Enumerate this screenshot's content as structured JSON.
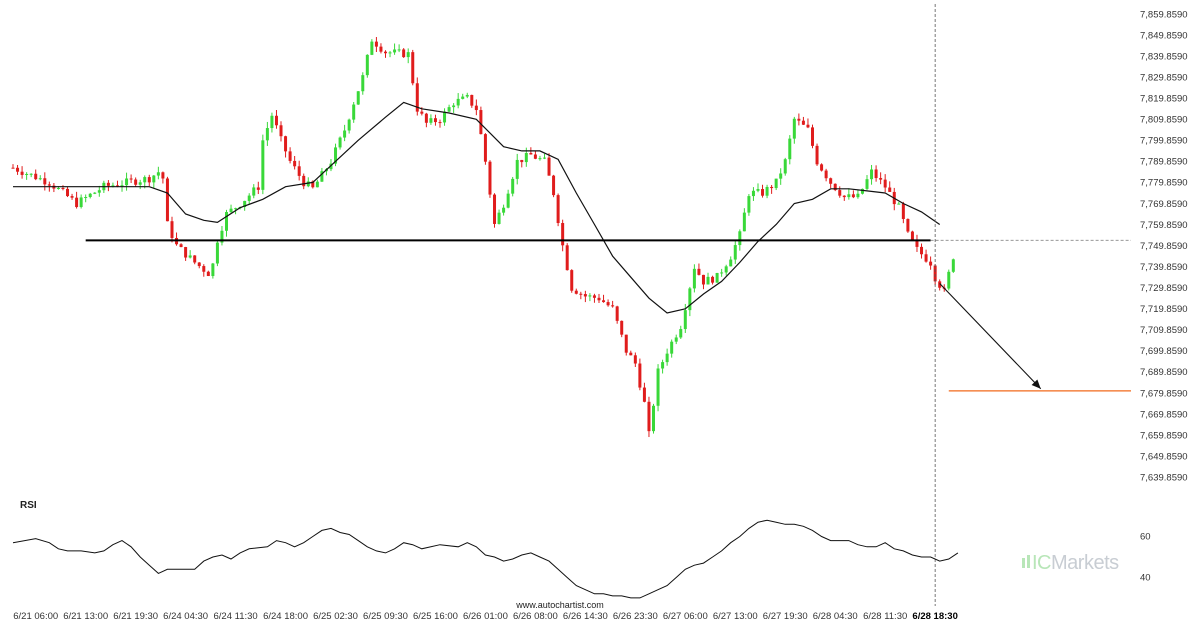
{
  "chart_data": {
    "type": "candlestick",
    "colors": {
      "up": "#39d839",
      "down": "#e01c1c",
      "ma": "#111111",
      "support": "#000000",
      "target": "#f26a1b",
      "arrow": "#111111",
      "rsi": "#111111"
    },
    "price_axis": {
      "ylim": [
        7634.859,
        7862.859
      ],
      "ticks": [
        "7,859.8590",
        "7,849.8590",
        "7,839.8590",
        "7,829.8590",
        "7,819.8590",
        "7,809.8590",
        "7,799.8590",
        "7,789.8590",
        "7,779.8590",
        "7,769.8590",
        "7,759.8590",
        "7,749.8590",
        "7,739.8590",
        "7,729.8590",
        "7,719.8590",
        "7,709.8590",
        "7,699.8590",
        "7,689.8590",
        "7,679.8590",
        "7,669.8590",
        "7,659.8590",
        "7,649.8590",
        "7,639.8590"
      ],
      "tick_values": [
        7859.859,
        7849.859,
        7839.859,
        7829.859,
        7819.859,
        7809.859,
        7799.859,
        7789.859,
        7779.859,
        7769.859,
        7759.859,
        7749.859,
        7739.859,
        7729.859,
        7719.859,
        7709.859,
        7699.859,
        7689.859,
        7679.859,
        7669.859,
        7659.859,
        7649.859,
        7639.859
      ]
    },
    "time_axis": {
      "bars": 228,
      "labels": [
        "6/21 06:00",
        "6/21 13:00",
        "6/21 19:30",
        "6/24 04:30",
        "6/24 11:30",
        "6/24 18:00",
        "6/25 02:30",
        "6/25 09:30",
        "6/25 16:00",
        "6/26 01:00",
        "6/26 08:00",
        "6/26 14:30",
        "6/26 23:30",
        "6/27 06:00",
        "6/27 13:00",
        "6/27 19:30",
        "6/28 04:30",
        "6/28 11:30",
        "6/28 18:30"
      ],
      "label_bar_index": [
        5,
        16,
        27,
        38,
        49,
        60,
        71,
        82,
        93,
        104,
        115,
        126,
        137,
        148,
        159,
        170,
        181,
        192,
        203
      ],
      "bold_label_index": 18
    },
    "price_path": [
      [
        0,
        7787
      ],
      [
        8,
        7780
      ],
      [
        14,
        7770
      ],
      [
        20,
        7778
      ],
      [
        30,
        7782
      ],
      [
        32,
        7785
      ],
      [
        33,
        7782
      ],
      [
        34,
        7760
      ],
      [
        36,
        7750
      ],
      [
        40,
        7742
      ],
      [
        43,
        7737
      ],
      [
        44,
        7741
      ],
      [
        45,
        7753
      ],
      [
        47,
        7765
      ],
      [
        50,
        7770
      ],
      [
        54,
        7778
      ],
      [
        55,
        7800
      ],
      [
        57,
        7812
      ],
      [
        59,
        7800
      ],
      [
        61,
        7790
      ],
      [
        64,
        7780
      ],
      [
        66,
        7777
      ],
      [
        70,
        7790
      ],
      [
        73,
        7805
      ],
      [
        75,
        7818
      ],
      [
        77,
        7830
      ],
      [
        79,
        7848
      ],
      [
        82,
        7842
      ],
      [
        87,
        7841
      ],
      [
        89,
        7815
      ],
      [
        91,
        7808
      ],
      [
        94,
        7810
      ],
      [
        97,
        7818
      ],
      [
        100,
        7820
      ],
      [
        102,
        7815
      ],
      [
        104,
        7790
      ],
      [
        106,
        7760
      ],
      [
        108,
        7770
      ],
      [
        111,
        7790
      ],
      [
        114,
        7793
      ],
      [
        117,
        7790
      ],
      [
        119,
        7775
      ],
      [
        121,
        7750
      ],
      [
        123,
        7730
      ],
      [
        126,
        7726
      ],
      [
        129,
        7725
      ],
      [
        132,
        7720
      ],
      [
        135,
        7700
      ],
      [
        137,
        7694
      ],
      [
        139,
        7675
      ],
      [
        140,
        7660
      ],
      [
        142,
        7690
      ],
      [
        144,
        7700
      ],
      [
        147,
        7712
      ],
      [
        150,
        7740
      ],
      [
        152,
        7733
      ],
      [
        155,
        7735
      ],
      [
        158,
        7745
      ],
      [
        160,
        7755
      ],
      [
        162,
        7775
      ],
      [
        165,
        7775
      ],
      [
        168,
        7780
      ],
      [
        170,
        7790
      ],
      [
        172,
        7810
      ],
      [
        175,
        7805
      ],
      [
        177,
        7790
      ],
      [
        180,
        7780
      ],
      [
        183,
        7773
      ],
      [
        186,
        7773
      ],
      [
        189,
        7785
      ],
      [
        192,
        7778
      ],
      [
        195,
        7768
      ],
      [
        197,
        7755
      ],
      [
        199,
        7748
      ],
      [
        202,
        7742
      ],
      [
        203,
        7735
      ],
      [
        205,
        7728
      ],
      [
        207,
        7745
      ]
    ],
    "ma_path": [
      [
        0,
        7778
      ],
      [
        10,
        7778
      ],
      [
        20,
        7778
      ],
      [
        26,
        7778
      ],
      [
        30,
        7778
      ],
      [
        34,
        7775
      ],
      [
        38,
        7765
      ],
      [
        42,
        7762
      ],
      [
        45,
        7761
      ],
      [
        50,
        7768
      ],
      [
        55,
        7772
      ],
      [
        60,
        7778
      ],
      [
        66,
        7780
      ],
      [
        70,
        7788
      ],
      [
        76,
        7800
      ],
      [
        82,
        7811
      ],
      [
        86,
        7818
      ],
      [
        90,
        7815
      ],
      [
        96,
        7813
      ],
      [
        102,
        7810
      ],
      [
        108,
        7797
      ],
      [
        112,
        7795
      ],
      [
        116,
        7795
      ],
      [
        120,
        7791
      ],
      [
        124,
        7775
      ],
      [
        128,
        7760
      ],
      [
        132,
        7745
      ],
      [
        136,
        7735
      ],
      [
        140,
        7725
      ],
      [
        144,
        7718
      ],
      [
        148,
        7720
      ],
      [
        152,
        7727
      ],
      [
        156,
        7733
      ],
      [
        160,
        7742
      ],
      [
        164,
        7752
      ],
      [
        168,
        7760
      ],
      [
        172,
        7770
      ],
      [
        176,
        7772
      ],
      [
        180,
        7777
      ],
      [
        184,
        7777
      ],
      [
        188,
        7776
      ],
      [
        192,
        7775
      ],
      [
        196,
        7770
      ],
      [
        200,
        7766
      ],
      [
        204,
        7760
      ]
    ],
    "support_level": 7752.5,
    "support_range_bars": [
      16,
      202
    ],
    "target_level": 7681.0,
    "target_range_bars": [
      206,
      228
    ],
    "forecast_arrow": {
      "from": [
        204,
        7732
      ],
      "to": [
        228,
        7682
      ]
    },
    "current_bar_index": 203,
    "rsi": {
      "title": "RSI",
      "ticks": [
        "60",
        "40"
      ],
      "tick_values": [
        60,
        40
      ],
      "ylim": [
        28,
        72
      ],
      "path": [
        [
          0,
          57
        ],
        [
          5,
          59
        ],
        [
          8,
          57
        ],
        [
          10,
          54
        ],
        [
          12,
          53
        ],
        [
          15,
          53
        ],
        [
          18,
          52
        ],
        [
          20,
          53
        ],
        [
          22,
          56
        ],
        [
          24,
          58
        ],
        [
          26,
          55
        ],
        [
          28,
          50
        ],
        [
          30,
          46
        ],
        [
          32,
          42
        ],
        [
          34,
          44
        ],
        [
          36,
          44
        ],
        [
          40,
          44
        ],
        [
          42,
          48
        ],
        [
          44,
          50
        ],
        [
          46,
          51
        ],
        [
          48,
          49
        ],
        [
          50,
          52
        ],
        [
          52,
          54
        ],
        [
          56,
          55
        ],
        [
          58,
          58
        ],
        [
          60,
          57
        ],
        [
          62,
          55
        ],
        [
          64,
          57
        ],
        [
          66,
          60
        ],
        [
          68,
          63
        ],
        [
          70,
          64
        ],
        [
          72,
          62
        ],
        [
          74,
          61
        ],
        [
          76,
          58
        ],
        [
          78,
          55
        ],
        [
          80,
          53
        ],
        [
          82,
          52
        ],
        [
          84,
          54
        ],
        [
          86,
          57
        ],
        [
          88,
          56
        ],
        [
          90,
          54
        ],
        [
          92,
          55
        ],
        [
          94,
          56
        ],
        [
          98,
          55
        ],
        [
          100,
          57
        ],
        [
          102,
          55
        ],
        [
          104,
          51
        ],
        [
          106,
          50
        ],
        [
          108,
          48
        ],
        [
          110,
          49
        ],
        [
          112,
          51
        ],
        [
          114,
          52
        ],
        [
          116,
          50
        ],
        [
          118,
          48
        ],
        [
          120,
          44
        ],
        [
          122,
          40
        ],
        [
          124,
          36
        ],
        [
          126,
          34
        ],
        [
          128,
          32
        ],
        [
          130,
          32
        ],
        [
          132,
          31
        ],
        [
          134,
          31
        ],
        [
          136,
          30
        ],
        [
          138,
          30
        ],
        [
          140,
          32
        ],
        [
          142,
          34
        ],
        [
          144,
          36
        ],
        [
          146,
          40
        ],
        [
          148,
          44
        ],
        [
          150,
          46
        ],
        [
          152,
          47
        ],
        [
          154,
          50
        ],
        [
          156,
          53
        ],
        [
          158,
          57
        ],
        [
          160,
          60
        ],
        [
          162,
          64
        ],
        [
          164,
          67
        ],
        [
          166,
          68
        ],
        [
          168,
          67
        ],
        [
          170,
          66
        ],
        [
          172,
          66
        ],
        [
          174,
          65
        ],
        [
          176,
          63
        ],
        [
          178,
          60
        ],
        [
          180,
          58
        ],
        [
          182,
          58
        ],
        [
          184,
          58
        ],
        [
          186,
          56
        ],
        [
          188,
          55
        ],
        [
          190,
          55
        ],
        [
          192,
          57
        ],
        [
          194,
          54
        ],
        [
          196,
          53
        ],
        [
          198,
          51
        ],
        [
          200,
          50
        ],
        [
          202,
          50
        ],
        [
          204,
          48
        ],
        [
          206,
          49
        ],
        [
          208,
          52
        ]
      ]
    }
  },
  "watermark": "www.autochartist.com",
  "brand": {
    "prefix": "IC",
    "name": "Markets"
  }
}
